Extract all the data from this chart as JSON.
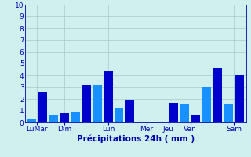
{
  "bars": [
    {
      "value": 0.3,
      "color": "#1890FF"
    },
    {
      "value": 2.6,
      "color": "#0000CD"
    },
    {
      "value": 0.7,
      "color": "#1890FF"
    },
    {
      "value": 0.8,
      "color": "#0000CD"
    },
    {
      "value": 0.9,
      "color": "#1890FF"
    },
    {
      "value": 3.2,
      "color": "#0000CD"
    },
    {
      "value": 3.2,
      "color": "#1890FF"
    },
    {
      "value": 4.4,
      "color": "#0000CD"
    },
    {
      "value": 1.2,
      "color": "#1890FF"
    },
    {
      "value": 1.9,
      "color": "#0000CD"
    },
    {
      "value": 0.0,
      "color": "#1890FF"
    },
    {
      "value": 0.0,
      "color": "#0000CD"
    },
    {
      "value": 0.0,
      "color": "#1890FF"
    },
    {
      "value": 1.7,
      "color": "#0000CD"
    },
    {
      "value": 1.6,
      "color": "#1890FF"
    },
    {
      "value": 0.7,
      "color": "#0000CD"
    },
    {
      "value": 3.0,
      "color": "#1890FF"
    },
    {
      "value": 4.6,
      "color": "#0000CD"
    },
    {
      "value": 1.6,
      "color": "#1890FF"
    },
    {
      "value": 4.0,
      "color": "#0000CD"
    }
  ],
  "day_labels": [
    "LuMar",
    "Dim",
    "Lun",
    "Mer",
    "Jeu",
    "Ven",
    "Sam"
  ],
  "day_tick_positions": [
    0.5,
    3.0,
    7.0,
    10.5,
    12.5,
    14.5,
    18.5
  ],
  "ylim": [
    0,
    10
  ],
  "yticks": [
    0,
    1,
    2,
    3,
    4,
    5,
    6,
    7,
    8,
    9,
    10
  ],
  "xlabel": "Précipitations 24h ( mm )",
  "background_color": "#D0F0F0",
  "grid_color": "#A8C8C8",
  "bar_width": 0.8,
  "xlabel_color": "#0000AA",
  "tick_color": "#0000AA",
  "axis_color": "#0000AA",
  "xlabel_fontsize": 7.5,
  "ytick_fontsize": 6.5,
  "xtick_fontsize": 6.5
}
